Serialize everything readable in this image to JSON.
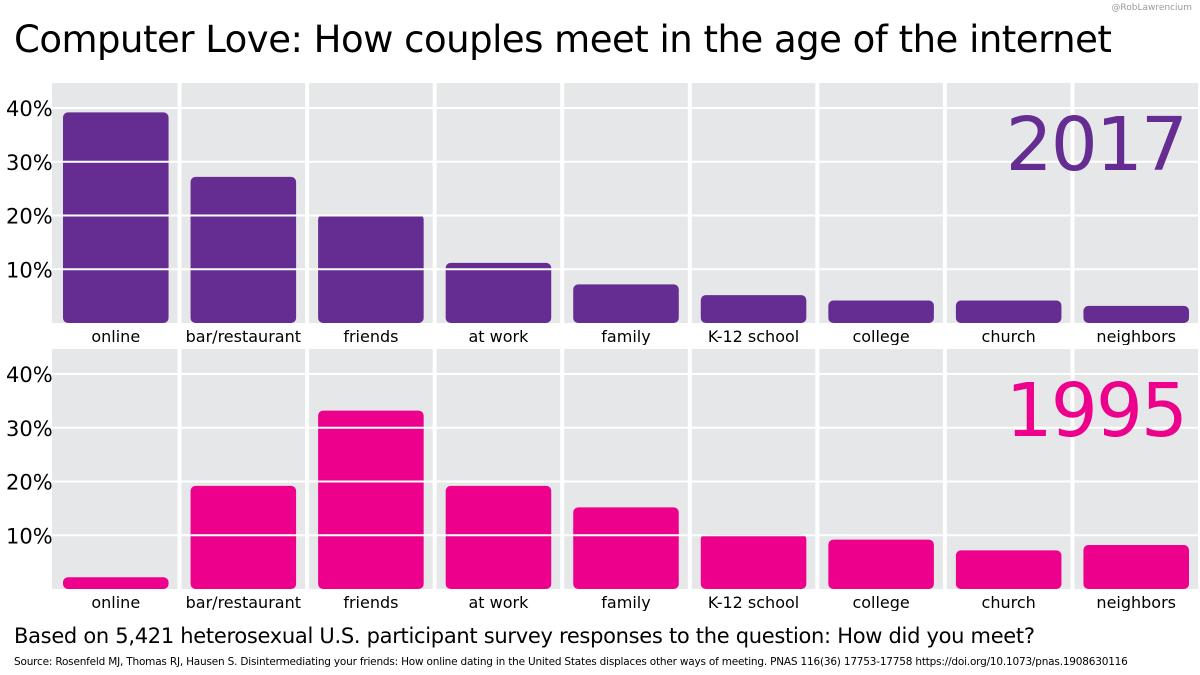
{
  "credit": "@RobLawrencium",
  "title": "Computer Love: How couples meet in the age of the internet",
  "footer": {
    "note": "Based on 5,421 heterosexual U.S. participant survey responses to the question: How did you meet?",
    "source": "Source: Rosenfeld MJ, Thomas RJ, Hausen S. Disintermediating your friends: How online dating in the United States displaces other ways of meeting. PNAS 116(36) 17753-17758 https://doi.org/10.1073/pnas.1908630116"
  },
  "colors": {
    "background": "#ffffff",
    "plot_background": "#e6e7e8",
    "grid": "#ffffff",
    "series_2017": "#652c91",
    "series_1995": "#ec008c"
  },
  "chart_data": [
    {
      "type": "bar",
      "title": "2017",
      "categories": [
        "online",
        "bar/restaurant",
        "friends",
        "at work",
        "family",
        "K-12 school",
        "college",
        "church",
        "neighbors"
      ],
      "values": [
        39,
        27,
        20,
        11,
        7,
        5,
        4,
        4,
        3
      ],
      "yticks": [
        "10%",
        "20%",
        "30%",
        "40%"
      ],
      "ylim": [
        0,
        40
      ],
      "grid": true,
      "legend": "none"
    },
    {
      "type": "bar",
      "title": "1995",
      "categories": [
        "online",
        "bar/restaurant",
        "friends",
        "at work",
        "family",
        "K-12 school",
        "college",
        "church",
        "neighbors"
      ],
      "values": [
        2,
        19,
        33,
        19,
        15,
        10,
        9,
        7,
        8
      ],
      "yticks": [
        "10%",
        "20%",
        "30%",
        "40%"
      ],
      "ylim": [
        0,
        40
      ],
      "grid": true,
      "legend": "none"
    }
  ]
}
